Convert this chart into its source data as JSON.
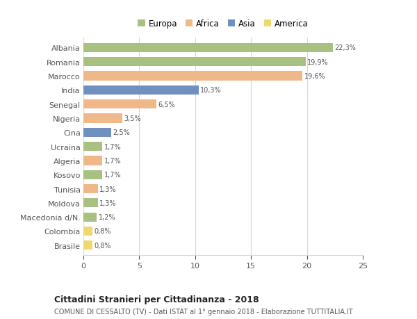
{
  "categories": [
    "Albania",
    "Romania",
    "Marocco",
    "India",
    "Senegal",
    "Nigeria",
    "Cina",
    "Ucraina",
    "Algeria",
    "Kosovo",
    "Tunisia",
    "Moldova",
    "Macedonia d/N.",
    "Colombia",
    "Brasile"
  ],
  "values": [
    22.3,
    19.9,
    19.6,
    10.3,
    6.5,
    3.5,
    2.5,
    1.7,
    1.7,
    1.7,
    1.3,
    1.3,
    1.2,
    0.8,
    0.8
  ],
  "labels": [
    "22,3%",
    "19,9%",
    "19,6%",
    "10,3%",
    "6,5%",
    "3,5%",
    "2,5%",
    "1,7%",
    "1,7%",
    "1,7%",
    "1,3%",
    "1,3%",
    "1,2%",
    "0,8%",
    "0,8%"
  ],
  "colors": [
    "#a8c080",
    "#a8c080",
    "#f0b888",
    "#7090c0",
    "#f0b888",
    "#f0b888",
    "#7090c0",
    "#a8c080",
    "#f0b888",
    "#a8c080",
    "#f0b888",
    "#a8c080",
    "#a8c080",
    "#f0d870",
    "#f0d870"
  ],
  "legend_labels": [
    "Europa",
    "Africa",
    "Asia",
    "America"
  ],
  "legend_colors": [
    "#a8c080",
    "#f0b888",
    "#7090c0",
    "#f0d870"
  ],
  "title_bold": "Cittadini Stranieri per Cittadinanza - 2018",
  "subtitle": "COMUNE DI CESSALTO (TV) - Dati ISTAT al 1° gennaio 2018 - Elaborazione TUTTITALIA.IT",
  "xlim": [
    0,
    25
  ],
  "xticks": [
    0,
    5,
    10,
    15,
    20,
    25
  ],
  "background_color": "#ffffff",
  "grid_color": "#d8d8d8",
  "bar_height": 0.65
}
